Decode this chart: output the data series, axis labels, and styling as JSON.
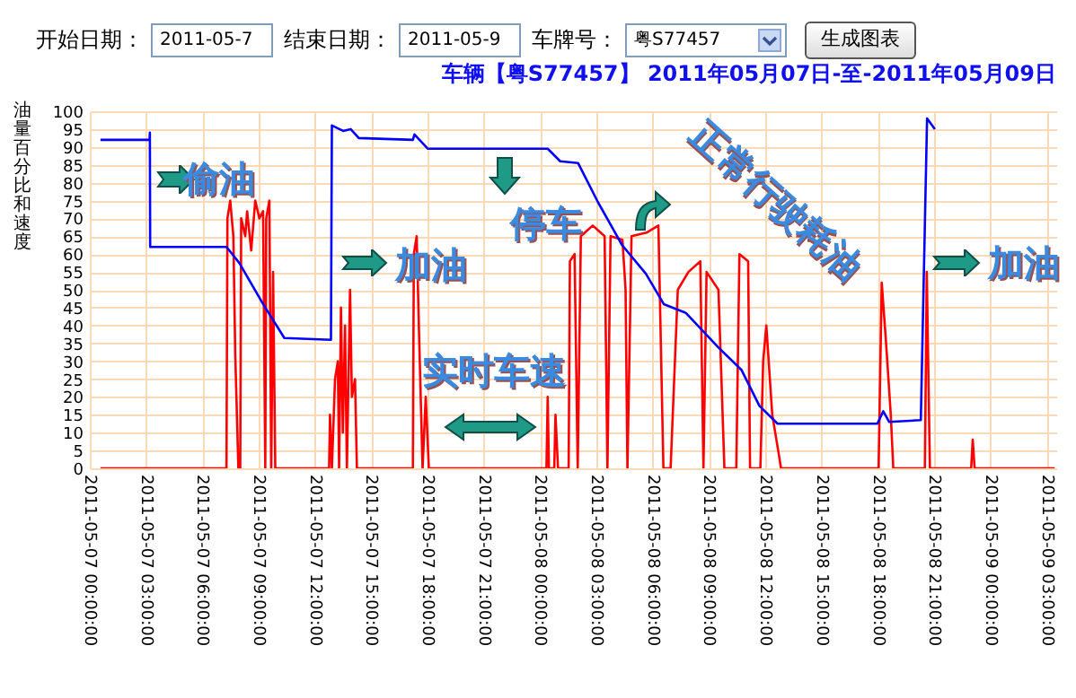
{
  "chart_data": {
    "type": "line",
    "title": "车辆【粤S77457】  2011年05月07日-至-2011年05月09日",
    "ylabel": "油量百分比和速度",
    "x": [
      "2011-05-07T00:34",
      "2011-05-07T07:17",
      "2011-05-07T07:20",
      "2011-05-07T07:29",
      "2011-05-07T07:39",
      "2011-05-07T07:45",
      "2011-05-07T07:55",
      "2011-05-07T08:01",
      "2011-05-07T08:04",
      "2011-05-07T08:17",
      "2011-05-07T08:23",
      "2011-05-07T08:36",
      "2011-05-07T08:49",
      "2011-05-07T09:02",
      "2011-05-07T09:14",
      "2011-05-07T09:21",
      "2011-05-07T09:24",
      "2011-05-07T09:34",
      "2011-05-07T09:40",
      "2011-05-07T09:46",
      "2011-05-07T09:53",
      "2011-05-07T12:45",
      "2011-05-07T12:48",
      "2011-05-07T12:54",
      "2011-05-07T13:04",
      "2011-05-07T13:13",
      "2011-05-07T13:17",
      "2011-05-07T13:23",
      "2011-05-07T13:29",
      "2011-05-07T13:36",
      "2011-05-07T13:42",
      "2011-05-07T13:52",
      "2011-05-07T13:58",
      "2011-05-07T14:08",
      "2011-05-07T14:14",
      "2011-05-07T17:13",
      "2011-05-07T17:16",
      "2011-05-07T17:25",
      "2011-05-07T17:35",
      "2011-05-07T17:44",
      "2011-05-07T17:54",
      "2011-05-07T18:04",
      "2011-05-08T00:20",
      "2011-05-08T00:24",
      "2011-05-08T00:28",
      "2011-05-08T00:45",
      "2011-05-08T00:49",
      "2011-05-08T00:57",
      "2011-05-08T01:31",
      "2011-05-08T01:35",
      "2011-05-08T01:50",
      "2011-05-08T02:00",
      "2011-05-08T02:10",
      "2011-05-08T02:48",
      "2011-05-08T03:26",
      "2011-05-08T03:35",
      "2011-05-08T03:45",
      "2011-05-08T04:23",
      "2011-05-08T04:33",
      "2011-05-08T04:39",
      "2011-05-08T04:52",
      "2011-05-08T05:40",
      "2011-05-08T06:18",
      "2011-05-08T06:34",
      "2011-05-08T06:57",
      "2011-05-08T07:20",
      "2011-05-08T07:54",
      "2011-05-08T08:32",
      "2011-05-08T08:42",
      "2011-05-08T08:52",
      "2011-05-08T09:30",
      "2011-05-08T09:49",
      "2011-05-08T10:27",
      "2011-05-08T10:37",
      "2011-05-08T11:05",
      "2011-05-08T11:11",
      "2011-05-08T11:44",
      "2011-05-08T11:53",
      "2011-05-08T12:03",
      "2011-05-08T12:22",
      "2011-05-08T12:41",
      "2011-05-08T12:50",
      "2011-05-08T18:02",
      "2011-05-08T18:12",
      "2011-05-08T18:26",
      "2011-05-08T18:41",
      "2011-05-08T18:49",
      "2011-05-08T20:30",
      "2011-05-08T20:36",
      "2011-05-08T20:46",
      "2011-05-08T22:58",
      "2011-05-08T23:03",
      "2011-05-08T23:09",
      "2011-05-09T03:25"
    ],
    "series": [
      {
        "color": "#ff0000",
        "values": [
          0,
          0,
          70,
          75,
          65,
          32,
          0,
          0,
          70,
          65,
          72,
          61,
          75,
          70,
          72,
          0,
          70,
          75,
          0,
          55,
          0,
          0,
          15,
          0,
          25,
          30,
          0,
          45,
          10,
          40,
          0,
          50,
          20,
          25,
          0,
          0,
          60,
          65,
          30,
          0,
          20,
          0,
          0,
          20,
          0,
          0,
          15,
          0,
          0,
          58,
          60,
          0,
          65,
          68,
          65,
          0,
          65,
          64,
          50,
          0,
          65,
          66,
          68,
          0,
          0,
          50,
          55,
          58,
          0,
          55,
          50,
          0,
          0,
          60,
          58,
          0,
          0,
          30,
          40,
          15,
          5,
          0,
          0,
          52,
          35,
          15,
          0,
          0,
          55,
          0,
          0,
          8,
          0,
          0
        ]
      },
      {
        "color": "#0000ff",
        "x": [
          "2011-05-07T00:34",
          "2011-05-07T03:11",
          "2011-05-07T03:12",
          "2011-05-07T03:13",
          "2011-05-07T07:17",
          "2011-05-07T07:58",
          "2011-05-07T09:14",
          "2011-05-07T10:22",
          "2011-05-07T12:51",
          "2011-05-07T12:54",
          "2011-05-07T13:30",
          "2011-05-07T13:54",
          "2011-05-07T14:20",
          "2011-05-07T17:13",
          "2011-05-07T17:18",
          "2011-05-07T18:01",
          "2011-05-08T00:24",
          "2011-05-08T01:04",
          "2011-05-08T02:01",
          "2011-05-08T03:05",
          "2011-05-08T04:22",
          "2011-05-08T05:38",
          "2011-05-08T06:35",
          "2011-05-08T07:46",
          "2011-05-08T09:28",
          "2011-05-08T10:44",
          "2011-05-08T11:41",
          "2011-05-08T12:39",
          "2011-05-08T17:58",
          "2011-05-08T18:17",
          "2011-05-08T18:36",
          "2011-05-08T20:17",
          "2011-05-08T20:37",
          "2011-05-08T21:02"
        ],
        "values": [
          92,
          92,
          94,
          62,
          62,
          57.5,
          46,
          36.5,
          36,
          96,
          94.5,
          95,
          92.5,
          92,
          93.5,
          89.5,
          89.5,
          86,
          85.5,
          74.5,
          62.5,
          54.5,
          46,
          43.5,
          34,
          27.5,
          17.5,
          12.5,
          12.5,
          16,
          13,
          13.5,
          98,
          95
        ]
      }
    ],
    "xlim": [
      "2011-05-07T00:00",
      "2011-05-09T03:30"
    ],
    "xticks": [
      {
        "value": "2011-05-07T00:00",
        "label": "2011-05-07 00:00:00"
      },
      {
        "value": "2011-05-07T03:00",
        "label": "2011-05-07 03:00:00"
      },
      {
        "value": "2011-05-07T06:00",
        "label": "2011-05-07 06:00:00"
      },
      {
        "value": "2011-05-07T09:00",
        "label": "2011-05-07 09:00:00"
      },
      {
        "value": "2011-05-07T12:00",
        "label": "2011-05-07 12:00:00"
      },
      {
        "value": "2011-05-07T15:00",
        "label": "2011-05-07 15:00:00"
      },
      {
        "value": "2011-05-07T18:00",
        "label": "2011-05-07 18:00:00"
      },
      {
        "value": "2011-05-07T21:00",
        "label": "2011-05-07 21:00:00"
      },
      {
        "value": "2011-05-08T00:00",
        "label": "2011-05-08 00:00:00"
      },
      {
        "value": "2011-05-08T03:00",
        "label": "2011-05-08 03:00:00"
      },
      {
        "value": "2011-05-08T06:00",
        "label": "2011-05-08 06:00:00"
      },
      {
        "value": "2011-05-08T09:00",
        "label": "2011-05-08 09:00:00"
      },
      {
        "value": "2011-05-08T12:00",
        "label": "2011-05-08 12:00:00"
      },
      {
        "value": "2011-05-08T15:00",
        "label": "2011-05-08 15:00:00"
      },
      {
        "value": "2011-05-08T18:00",
        "label": "2011-05-08 18:00:00"
      },
      {
        "value": "2011-05-08T21:00",
        "label": "2011-05-08 21:00:00"
      },
      {
        "value": "2011-05-09T00:00",
        "label": "2011-05-09 00:00:00"
      },
      {
        "value": "2011-05-09T03:00",
        "label": "2011-05-09 03:00:00"
      }
    ],
    "ylim": [
      0,
      100
    ],
    "yticks": [
      0,
      5,
      10,
      15,
      20,
      25,
      30,
      35,
      40,
      45,
      50,
      55,
      60,
      65,
      70,
      75,
      80,
      85,
      90,
      95,
      100
    ],
    "grid": true,
    "annotations": [
      "开始日期：",
      "2011-05-7",
      "结束日期：",
      "2011-05-9",
      "车牌号：",
      "粤S77457",
      "生成图表",
      "偷油",
      "加油",
      "停车",
      "实时车速",
      "正常行驶耗油",
      "加油"
    ]
  }
}
